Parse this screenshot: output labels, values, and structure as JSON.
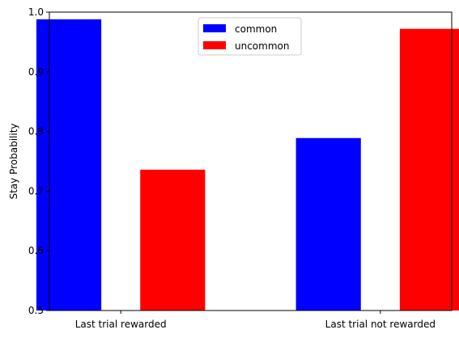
{
  "chart_data": {
    "type": "bar",
    "categories": [
      "Last trial rewarded",
      "Last trial not rewarded"
    ],
    "series": [
      {
        "name": "common",
        "color": "#0000ff",
        "values": [
          0.988,
          0.789
        ]
      },
      {
        "name": "uncommon",
        "color": "#ff0000",
        "values": [
          0.736,
          0.972
        ]
      }
    ],
    "xlabel": "",
    "ylabel": "Stay Probability",
    "ylim": [
      0.5,
      1.0
    ],
    "yticks": [
      "0.5",
      "0.6",
      "0.7",
      "0.8",
      "0.9",
      "1.0"
    ],
    "grid": false,
    "legend_position": "top-center"
  }
}
